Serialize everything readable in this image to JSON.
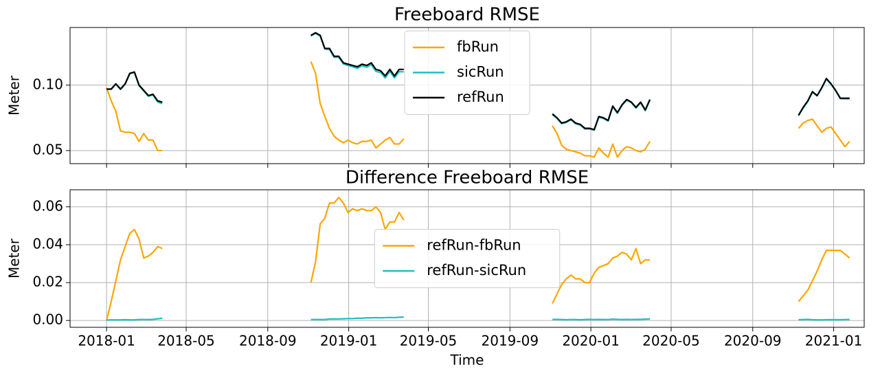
{
  "chart_data": [
    {
      "type": "line",
      "title": "Freeboard RMSE",
      "ylabel": "Meter",
      "x": [
        "2018-01-01",
        "2018-01-08",
        "2018-01-15",
        "2018-01-22",
        "2018-01-29",
        "2018-02-05",
        "2018-02-12",
        "2018-02-19",
        "2018-02-26",
        "2018-03-05",
        "2018-03-12",
        "2018-03-19",
        "2018-03-26",
        "2018-04-02",
        "2018-11-05",
        "2018-11-12",
        "2018-11-19",
        "2018-11-26",
        "2018-12-03",
        "2018-12-10",
        "2018-12-17",
        "2018-12-24",
        "2018-12-31",
        "2019-01-07",
        "2019-01-14",
        "2019-01-21",
        "2019-01-28",
        "2019-02-04",
        "2019-02-11",
        "2019-02-18",
        "2019-02-25",
        "2019-03-04",
        "2019-03-11",
        "2019-03-18",
        "2019-03-25",
        "2019-04-01",
        "2019-11-04",
        "2019-11-11",
        "2019-11-18",
        "2019-11-25",
        "2019-12-02",
        "2019-12-09",
        "2019-12-16",
        "2019-12-23",
        "2019-12-30",
        "2020-01-06",
        "2020-01-13",
        "2020-01-20",
        "2020-01-27",
        "2020-02-03",
        "2020-02-10",
        "2020-02-17",
        "2020-02-24",
        "2020-03-02",
        "2020-03-09",
        "2020-03-16",
        "2020-03-23",
        "2020-03-30",
        "2020-04-06",
        "2020-11-09",
        "2020-11-16",
        "2020-11-23",
        "2020-11-30",
        "2020-12-07",
        "2020-12-14",
        "2020-12-21",
        "2020-12-28",
        "2021-01-04",
        "2021-01-11",
        "2021-01-18",
        "2021-01-25"
      ],
      "xlim": [
        "2017-11-07",
        "2021-02-16"
      ],
      "series": [
        {
          "name": "fbRun",
          "color": "#ffa500",
          "values": [
            0.098,
            0.088,
            0.08,
            0.065,
            0.064,
            0.064,
            0.063,
            0.057,
            0.063,
            0.058,
            0.058,
            0.05,
            0.05,
            null,
            0.118,
            0.109,
            0.086,
            0.076,
            0.067,
            0.061,
            0.058,
            0.056,
            0.058,
            0.056,
            0.055,
            0.057,
            0.057,
            0.058,
            0.052,
            0.055,
            0.058,
            0.06,
            0.055,
            0.055,
            0.059,
            null,
            0.069,
            0.063,
            0.054,
            0.051,
            0.05,
            0.049,
            0.048,
            0.046,
            0.046,
            0.045,
            0.052,
            0.048,
            0.045,
            0.055,
            0.045,
            0.05,
            0.053,
            0.052,
            0.05,
            0.049,
            0.051,
            0.057,
            null,
            0.067,
            0.071,
            0.073,
            0.074,
            0.069,
            0.064,
            0.067,
            0.068,
            0.063,
            0.058,
            0.053,
            0.057
          ]
        },
        {
          "name": "sicRun",
          "color": "#1fbfbf",
          "values": [
            0.0968,
            0.0967,
            0.1007,
            0.0967,
            0.1006,
            0.1087,
            0.1097,
            0.0995,
            0.0955,
            0.0915,
            0.0924,
            0.0871,
            0.0858,
            null,
            0.1375,
            0.1395,
            0.1375,
            0.1275,
            0.1272,
            0.1212,
            0.1212,
            0.1161,
            0.115,
            0.114,
            0.1128,
            0.1148,
            0.1136,
            0.1156,
            0.1105,
            0.1096,
            0.1055,
            0.1104,
            0.1055,
            0.1103,
            0.1102,
            null,
            0.0775,
            0.0745,
            0.0705,
            0.0715,
            0.0735,
            0.0705,
            0.0695,
            0.0665,
            0.0665,
            0.0655,
            0.0755,
            0.0745,
            0.0725,
            0.0835,
            0.0785,
            0.0845,
            0.0885,
            0.0865,
            0.0825,
            0.0865,
            0.0805,
            0.0885,
            null,
            0.0766,
            0.0825,
            0.0874,
            0.0946,
            0.0917,
            0.0977,
            0.1046,
            0.1006,
            0.0956,
            0.0896,
            0.0895,
            0.0895
          ]
        },
        {
          "name": "refRun",
          "color": "#000000",
          "values": [
            0.097,
            0.097,
            0.101,
            0.097,
            0.101,
            0.109,
            0.11,
            0.1,
            0.096,
            0.092,
            0.093,
            0.088,
            0.087,
            null,
            0.138,
            0.14,
            0.138,
            0.128,
            0.128,
            0.122,
            0.122,
            0.117,
            0.116,
            0.115,
            0.114,
            0.116,
            0.115,
            0.117,
            0.112,
            0.111,
            0.107,
            0.112,
            0.107,
            0.112,
            0.112,
            null,
            0.078,
            0.075,
            0.071,
            0.072,
            0.074,
            0.071,
            0.07,
            0.067,
            0.067,
            0.066,
            0.076,
            0.075,
            0.073,
            0.084,
            0.079,
            0.085,
            0.089,
            0.087,
            0.083,
            0.087,
            0.081,
            0.089,
            null,
            0.077,
            0.083,
            0.088,
            0.095,
            0.092,
            0.098,
            0.105,
            0.101,
            0.096,
            0.09,
            0.09,
            0.09
          ]
        }
      ],
      "ylim": [
        0.04,
        0.144
      ],
      "yticks": [
        0.05,
        {
          "value": 0.1,
          "label": "0.10"
        }
      ],
      "grid": true,
      "legend": "upper center"
    },
    {
      "type": "line",
      "title": "Difference Freeboard RMSE",
      "ylabel": "Meter",
      "xlabel": "Time",
      "x": [
        "2018-01-01",
        "2018-01-08",
        "2018-01-15",
        "2018-01-22",
        "2018-01-29",
        "2018-02-05",
        "2018-02-12",
        "2018-02-19",
        "2018-02-26",
        "2018-03-05",
        "2018-03-12",
        "2018-03-19",
        "2018-03-26",
        "2018-04-02",
        "2018-11-05",
        "2018-11-12",
        "2018-11-19",
        "2018-11-26",
        "2018-12-03",
        "2018-12-10",
        "2018-12-17",
        "2018-12-24",
        "2018-12-31",
        "2019-01-07",
        "2019-01-14",
        "2019-01-21",
        "2019-01-28",
        "2019-02-04",
        "2019-02-11",
        "2019-02-18",
        "2019-02-25",
        "2019-03-04",
        "2019-03-11",
        "2019-03-18",
        "2019-03-25",
        "2019-04-01",
        "2019-11-04",
        "2019-11-11",
        "2019-11-18",
        "2019-11-25",
        "2019-12-02",
        "2019-12-09",
        "2019-12-16",
        "2019-12-23",
        "2019-12-30",
        "2020-01-06",
        "2020-01-13",
        "2020-01-20",
        "2020-01-27",
        "2020-02-03",
        "2020-02-10",
        "2020-02-17",
        "2020-02-24",
        "2020-03-02",
        "2020-03-09",
        "2020-03-16",
        "2020-03-23",
        "2020-03-30",
        "2020-04-06",
        "2020-11-09",
        "2020-11-16",
        "2020-11-23",
        "2020-11-30",
        "2020-12-07",
        "2020-12-14",
        "2020-12-21",
        "2020-12-28",
        "2021-01-04",
        "2021-01-11",
        "2021-01-18",
        "2021-01-25"
      ],
      "xlim": [
        "2017-11-07",
        "2021-02-16"
      ],
      "xticks": [
        {
          "value": "2018-01-01",
          "label": "2018-01"
        },
        {
          "value": "2018-05-01",
          "label": "2018-05"
        },
        {
          "value": "2018-09-01",
          "label": "2018-09"
        },
        {
          "value": "2019-01-01",
          "label": "2019-01"
        },
        {
          "value": "2019-05-01",
          "label": "2019-05"
        },
        {
          "value": "2019-09-01",
          "label": "2019-09"
        },
        {
          "value": "2020-01-01",
          "label": "2020-01"
        },
        {
          "value": "2020-05-01",
          "label": "2020-05"
        },
        {
          "value": "2020-09-01",
          "label": "2020-09"
        },
        {
          "value": "2021-01-01",
          "label": "2021-01"
        }
      ],
      "series": [
        {
          "name": "refRun-fbRun",
          "color": "#ffa500",
          "values": [
            0.0,
            0.01,
            0.021,
            0.032,
            0.039,
            0.046,
            0.048,
            0.043,
            0.033,
            0.034,
            0.036,
            0.039,
            0.038,
            null,
            0.02,
            0.031,
            0.051,
            0.054,
            0.062,
            0.062,
            0.065,
            0.062,
            0.057,
            0.059,
            0.058,
            0.059,
            0.058,
            0.058,
            0.06,
            0.057,
            0.048,
            0.052,
            0.052,
            0.057,
            0.053,
            null,
            0.009,
            0.014,
            0.019,
            0.022,
            0.024,
            0.022,
            0.022,
            0.02,
            0.02,
            0.025,
            0.028,
            0.029,
            0.03,
            0.033,
            0.034,
            0.036,
            0.035,
            0.032,
            0.038,
            0.03,
            0.032,
            0.032,
            null,
            0.01,
            0.013,
            0.016,
            0.021,
            0.026,
            0.032,
            0.037,
            0.037,
            0.037,
            0.037,
            0.035,
            0.033
          ]
        },
        {
          "name": "refRun-sicRun",
          "color": "#1fbfbf",
          "values": [
            0.0002,
            0.0003,
            0.0003,
            0.0003,
            0.0004,
            0.0003,
            0.0003,
            0.0005,
            0.0005,
            0.0005,
            0.0006,
            0.0009,
            0.0012,
            null,
            0.0005,
            0.0005,
            0.0005,
            0.0005,
            0.0008,
            0.0008,
            0.0008,
            0.0009,
            0.001,
            0.001,
            0.0012,
            0.0012,
            0.0014,
            0.0014,
            0.0015,
            0.0014,
            0.0015,
            0.0016,
            0.0015,
            0.0017,
            0.0018,
            null,
            0.0006,
            0.0006,
            0.0005,
            0.0004,
            0.0005,
            0.0005,
            0.0004,
            0.0005,
            0.0006,
            0.0005,
            0.0006,
            0.0005,
            0.0005,
            0.0007,
            0.0006,
            0.0005,
            0.0006,
            0.0005,
            0.0006,
            0.0006,
            0.0007,
            0.0008,
            null,
            0.0004,
            0.0005,
            0.0006,
            0.0004,
            0.0003,
            0.0003,
            0.0004,
            0.0004,
            0.0004,
            0.0004,
            0.0005,
            0.0005
          ]
        }
      ],
      "ylim": [
        -0.0036,
        0.069
      ],
      "yticks": [
        {
          "value": 0,
          "label": "0.00"
        },
        0.02,
        0.04,
        0.06
      ],
      "grid": true,
      "legend": "center"
    }
  ]
}
